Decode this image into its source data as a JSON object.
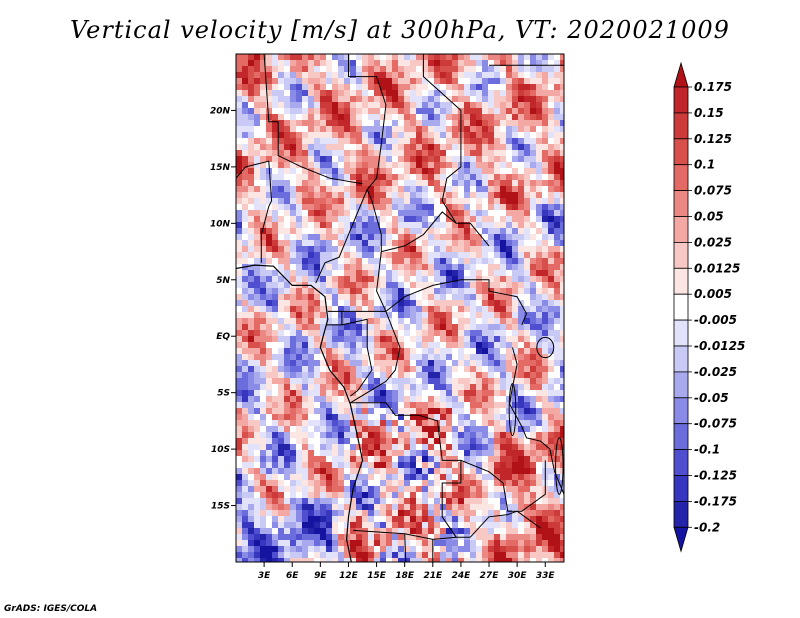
{
  "title": "Vertical velocity [m/s] at 300hPa, VT: 2020021009",
  "footer": "GrADS: IGES/COLA",
  "map": {
    "type": "heatmap",
    "lon_range": [
      0,
      35
    ],
    "lat_range": [
      -20,
      25
    ],
    "lat_ticks": [
      {
        "value": 20,
        "label": "20N"
      },
      {
        "value": 15,
        "label": "15N"
      },
      {
        "value": 10,
        "label": "10N"
      },
      {
        "value": 5,
        "label": "5N"
      },
      {
        "value": 0,
        "label": "EQ"
      },
      {
        "value": -5,
        "label": "5S"
      },
      {
        "value": -10,
        "label": "10S"
      },
      {
        "value": -15,
        "label": "15S"
      }
    ],
    "lon_ticks": [
      {
        "value": 3,
        "label": "3E"
      },
      {
        "value": 6,
        "label": "6E"
      },
      {
        "value": 9,
        "label": "9E"
      },
      {
        "value": 12,
        "label": "12E"
      },
      {
        "value": 15,
        "label": "15E"
      },
      {
        "value": 18,
        "label": "18E"
      },
      {
        "value": 21,
        "label": "21E"
      },
      {
        "value": 24,
        "label": "24E"
      },
      {
        "value": 27,
        "label": "27E"
      },
      {
        "value": 30,
        "label": "30E"
      },
      {
        "value": 33,
        "label": "33E"
      }
    ]
  },
  "colorbar": {
    "levels": [
      "0.175",
      "0.15",
      "0.125",
      "0.1",
      "0.075",
      "0.05",
      "0.025",
      "0.0125",
      "0.005",
      "-0.005",
      "-0.0125",
      "-0.025",
      "-0.05",
      "-0.075",
      "-0.1",
      "-0.125",
      "-0.175",
      "-0.2"
    ],
    "colors": [
      "#b01218",
      "#c0262a",
      "#cc3b3a",
      "#d8504c",
      "#e46a66",
      "#ec8884",
      "#f3a8a4",
      "#f8c8c5",
      "#fce6e4",
      "#ffffff",
      "#e2e3fb",
      "#c8c9f5",
      "#a9aaee",
      "#8a8be6",
      "#6c6ddc",
      "#4f4fcf",
      "#3636bf",
      "#2424aa",
      "#1414a0"
    ]
  }
}
